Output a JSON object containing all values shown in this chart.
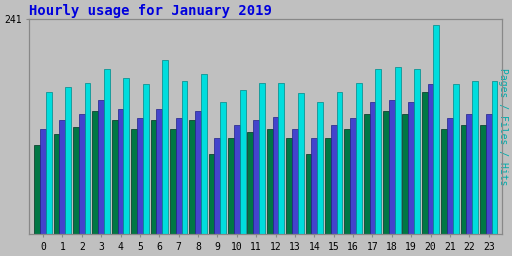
{
  "title": "Hourly usage for January 2019",
  "title_color": "#0000dd",
  "background_color": "#c0c0c0",
  "ylabel_right": "Pages / Files / Hits",
  "hours": [
    0,
    1,
    2,
    3,
    4,
    5,
    6,
    7,
    8,
    9,
    10,
    11,
    12,
    13,
    14,
    15,
    16,
    17,
    18,
    19,
    20,
    21,
    22,
    23
  ],
  "pages": [
    100,
    112,
    120,
    138,
    128,
    118,
    128,
    118,
    128,
    90,
    108,
    115,
    118,
    108,
    90,
    108,
    118,
    135,
    138,
    135,
    160,
    118,
    122,
    122
  ],
  "files": [
    118,
    128,
    135,
    150,
    140,
    130,
    140,
    130,
    138,
    108,
    122,
    128,
    132,
    118,
    108,
    122,
    130,
    148,
    150,
    148,
    168,
    130,
    135,
    135
  ],
  "hits": [
    160,
    165,
    170,
    185,
    175,
    168,
    195,
    172,
    180,
    148,
    162,
    170,
    170,
    158,
    148,
    160,
    170,
    185,
    188,
    185,
    235,
    168,
    172,
    172
  ],
  "pages_color": "#007744",
  "files_color": "#4444cc",
  "hits_color": "#00dddd",
  "pages_edge": "#003322",
  "files_edge": "#222288",
  "hits_edge": "#008888",
  "ylim_max": 241,
  "bar_width": 0.3,
  "ytick_label": "241",
  "grid_color": "#aaaaaa",
  "spine_color": "#888888",
  "right_label_color": "#00aaaa",
  "figsize": [
    5.12,
    2.56
  ],
  "dpi": 100
}
